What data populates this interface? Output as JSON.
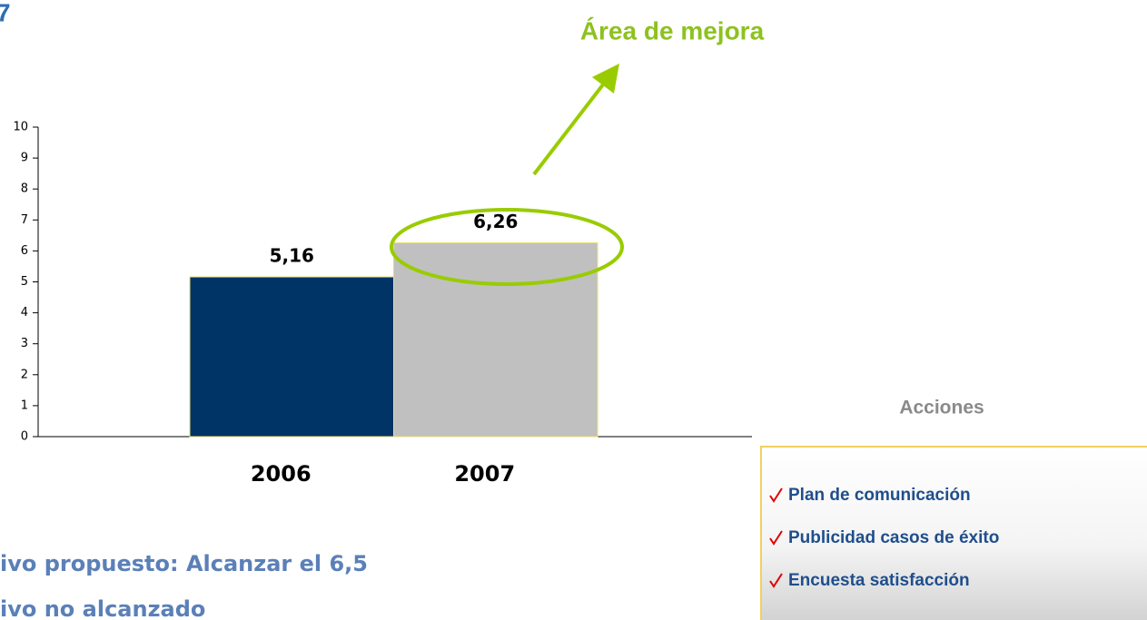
{
  "page_title": "7",
  "chart_data": {
    "type": "bar",
    "annotation": "Área de mejora",
    "categories": [
      "2006",
      "2007"
    ],
    "values": [
      5.16,
      6.26
    ],
    "value_labels": [
      "5,16",
      "6,26"
    ],
    "colors": [
      "#003366",
      "#c0c0c0"
    ],
    "ylim": [
      0,
      10
    ],
    "yticks": [
      0,
      1,
      2,
      3,
      4,
      5,
      6,
      7,
      8,
      9,
      10
    ]
  },
  "notes": [
    "ivo propuesto: Alcanzar el 6,5",
    "ivo no alcanzado"
  ],
  "actions": {
    "title": "Acciones",
    "items": [
      "Plan de comunicación",
      "Publicidad casos de éxito",
      "Encuesta satisfacción"
    ]
  }
}
